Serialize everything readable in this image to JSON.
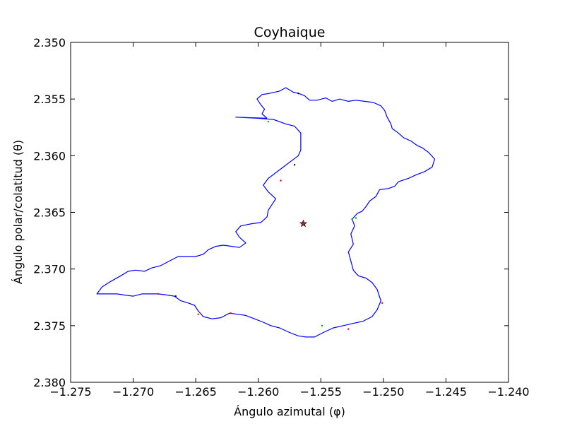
{
  "chart_data": {
    "type": "line",
    "title": "Coyhaique",
    "xlabel": "Ángulo azimutal (φ)",
    "ylabel": "Ángulo polar/colatitud (θ)",
    "xlim": [
      -1.275,
      -1.24
    ],
    "ylim": [
      2.38,
      2.35
    ],
    "y_inverted": true,
    "grid": false,
    "x_ticks": [
      -1.275,
      -1.27,
      -1.265,
      -1.26,
      -1.255,
      -1.25,
      -1.245,
      -1.24
    ],
    "x_tick_labels": [
      "−1.275",
      "−1.270",
      "−1.265",
      "−1.260",
      "−1.255",
      "−1.250",
      "−1.245",
      "−1.240"
    ],
    "y_ticks": [
      2.35,
      2.355,
      2.36,
      2.365,
      2.37,
      2.375,
      2.38
    ],
    "y_tick_labels": [
      "2.350",
      "2.355",
      "2.360",
      "2.365",
      "2.370",
      "2.375",
      "2.380"
    ],
    "colors": {
      "boundary": "#0000ff",
      "center_marker": "#b22222"
    },
    "series": [
      {
        "type": "line",
        "color": "#0000ff",
        "points": [
          [
            -1.2593,
            2.3567
          ],
          [
            -1.2597,
            2.3563
          ],
          [
            -1.2595,
            2.3559
          ],
          [
            -1.2598,
            2.3555
          ],
          [
            -1.2601,
            2.355
          ],
          [
            -1.2597,
            2.3546
          ],
          [
            -1.2591,
            2.3545
          ],
          [
            -1.2583,
            2.3543
          ],
          [
            -1.2578,
            2.354
          ],
          [
            -1.2572,
            2.3544
          ],
          [
            -1.2568,
            2.3545
          ],
          [
            -1.2563,
            2.3547
          ],
          [
            -1.2559,
            2.3551
          ],
          [
            -1.2553,
            2.3551
          ],
          [
            -1.2546,
            2.3549
          ],
          [
            -1.2541,
            2.3552
          ],
          [
            -1.2535,
            2.355
          ],
          [
            -1.2528,
            2.3552
          ],
          [
            -1.2522,
            2.3551
          ],
          [
            -1.2515,
            2.3552
          ],
          [
            -1.2508,
            2.3553
          ],
          [
            -1.2502,
            2.3556
          ],
          [
            -1.2499,
            2.356
          ],
          [
            -1.2497,
            2.3566
          ],
          [
            -1.2494,
            2.3572
          ],
          [
            -1.2493,
            2.3576
          ],
          [
            -1.2488,
            2.358
          ],
          [
            -1.2484,
            2.3584
          ],
          [
            -1.2478,
            2.3587
          ],
          [
            -1.2473,
            2.3591
          ],
          [
            -1.2469,
            2.3593
          ],
          [
            -1.2464,
            2.3597
          ],
          [
            -1.2459,
            2.3603
          ],
          [
            -1.2461,
            2.361
          ],
          [
            -1.2467,
            2.3614
          ],
          [
            -1.2474,
            2.3617
          ],
          [
            -1.248,
            2.362
          ],
          [
            -1.2488,
            2.3623
          ],
          [
            -1.2491,
            2.3627
          ],
          [
            -1.2496,
            2.3629
          ],
          [
            -1.2503,
            2.363
          ],
          [
            -1.2506,
            2.3636
          ],
          [
            -1.2511,
            2.364
          ],
          [
            -1.2514,
            2.3645
          ],
          [
            -1.2517,
            2.3649
          ],
          [
            -1.2521,
            2.3651
          ],
          [
            -1.2525,
            2.3656
          ],
          [
            -1.2523,
            2.3662
          ],
          [
            -1.2526,
            2.3669
          ],
          [
            -1.2524,
            2.3678
          ],
          [
            -1.2528,
            2.3685
          ],
          [
            -1.2526,
            2.3693
          ],
          [
            -1.2524,
            2.3701
          ],
          [
            -1.252,
            2.3706
          ],
          [
            -1.2514,
            2.3708
          ],
          [
            -1.2509,
            2.3712
          ],
          [
            -1.2505,
            2.3718
          ],
          [
            -1.2502,
            2.3728
          ],
          [
            -1.2505,
            2.3736
          ],
          [
            -1.2509,
            2.3742
          ],
          [
            -1.2516,
            2.3746
          ],
          [
            -1.2524,
            2.3748
          ],
          [
            -1.2532,
            2.375
          ],
          [
            -1.254,
            2.3752
          ],
          [
            -1.2548,
            2.3756
          ],
          [
            -1.2555,
            2.376
          ],
          [
            -1.2562,
            2.376
          ],
          [
            -1.2568,
            2.3759
          ],
          [
            -1.2575,
            2.3756
          ],
          [
            -1.2583,
            2.3752
          ],
          [
            -1.259,
            2.375
          ],
          [
            -1.2596,
            2.3747
          ],
          [
            -1.2603,
            2.3744
          ],
          [
            -1.261,
            2.3741
          ],
          [
            -1.2616,
            2.374
          ],
          [
            -1.2623,
            2.3739
          ],
          [
            -1.263,
            2.3743
          ],
          [
            -1.2637,
            2.3744
          ],
          [
            -1.2644,
            2.3742
          ],
          [
            -1.2648,
            2.3737
          ],
          [
            -1.2651,
            2.3732
          ],
          [
            -1.2656,
            2.373
          ],
          [
            -1.2662,
            2.3728
          ],
          [
            -1.2667,
            2.3724
          ],
          [
            -1.2673,
            2.3723
          ],
          [
            -1.268,
            2.3722
          ],
          [
            -1.2687,
            2.3722
          ],
          [
            -1.2693,
            2.3722
          ],
          [
            -1.27,
            2.3724
          ],
          [
            -1.2707,
            2.3723
          ],
          [
            -1.2713,
            2.3722
          ],
          [
            -1.272,
            2.3722
          ],
          [
            -1.2729,
            2.3722
          ],
          [
            -1.2725,
            2.3716
          ],
          [
            -1.2718,
            2.3711
          ],
          [
            -1.271,
            2.3706
          ],
          [
            -1.2704,
            2.3702
          ],
          [
            -1.2698,
            2.3701
          ],
          [
            -1.2691,
            2.3702
          ],
          [
            -1.2685,
            2.3699
          ],
          [
            -1.2678,
            2.3697
          ],
          [
            -1.2671,
            2.3693
          ],
          [
            -1.2664,
            2.3689
          ],
          [
            -1.2657,
            2.3689
          ],
          [
            -1.265,
            2.3689
          ],
          [
            -1.2644,
            2.3687
          ],
          [
            -1.264,
            2.3683
          ],
          [
            -1.2634,
            2.368
          ],
          [
            -1.2628,
            2.3679
          ],
          [
            -1.2621,
            2.368
          ],
          [
            -1.2615,
            2.3681
          ],
          [
            -1.261,
            2.3677
          ],
          [
            -1.2615,
            2.3672
          ],
          [
            -1.2618,
            2.3667
          ],
          [
            -1.2614,
            2.3662
          ],
          [
            -1.2605,
            2.366
          ],
          [
            -1.2598,
            2.3659
          ],
          [
            -1.2593,
            2.3654
          ],
          [
            -1.2592,
            2.3648
          ],
          [
            -1.2589,
            2.3643
          ],
          [
            -1.2586,
            2.3638
          ],
          [
            -1.2592,
            2.3632
          ],
          [
            -1.2596,
            2.3626
          ],
          [
            -1.2592,
            2.362
          ],
          [
            -1.258,
            2.361
          ],
          [
            -1.2568,
            2.36
          ],
          [
            -1.2566,
            2.3595
          ],
          [
            -1.2566,
            2.358
          ],
          [
            -1.2571,
            2.3574
          ],
          [
            -1.2578,
            2.3572
          ],
          [
            -1.2583,
            2.357
          ],
          [
            -1.2588,
            2.3568
          ],
          [
            -1.26,
            2.3567
          ],
          [
            -1.2618,
            2.3566
          ],
          [
            -1.2593,
            2.3567
          ]
        ]
      }
    ],
    "markers": [
      {
        "shape": "star",
        "x": -1.2564,
        "y": 2.366,
        "color": "#b22222"
      }
    ],
    "scatter_specks": [
      {
        "x": -1.2592,
        "y": 2.357,
        "color": "#00aa00"
      },
      {
        "x": -1.2568,
        "y": 2.3545,
        "color": "#000000"
      },
      {
        "x": -1.2571,
        "y": 2.3608,
        "color": "#000000"
      },
      {
        "x": -1.2582,
        "y": 2.3622,
        "color": "#ff0000"
      },
      {
        "x": -1.2525,
        "y": 2.3656,
        "color": "#00aa00"
      },
      {
        "x": -1.2522,
        "y": 2.3655,
        "color": "#00aa00"
      },
      {
        "x": -1.268,
        "y": 2.3722,
        "color": "#ff0000"
      },
      {
        "x": -1.2666,
        "y": 2.3724,
        "color": "#000000"
      },
      {
        "x": -1.2648,
        "y": 2.374,
        "color": "#ff0000"
      },
      {
        "x": -1.2622,
        "y": 2.3739,
        "color": "#ff0000"
      },
      {
        "x": -1.2549,
        "y": 2.375,
        "color": "#00aa00"
      },
      {
        "x": -1.2528,
        "y": 2.3753,
        "color": "#ff0000"
      },
      {
        "x": -1.2501,
        "y": 2.373,
        "color": "#ff0000"
      }
    ]
  }
}
